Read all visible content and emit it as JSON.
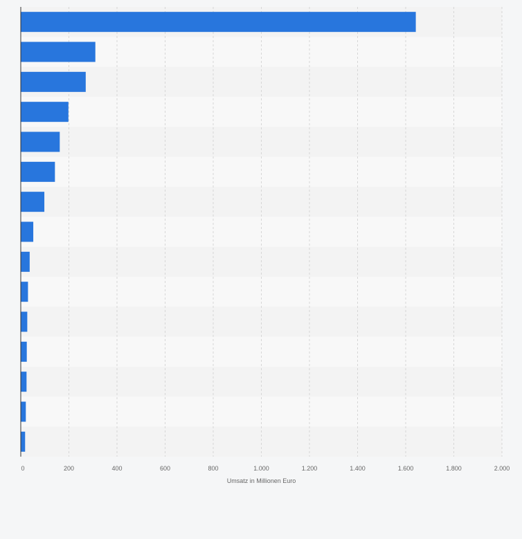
{
  "chart_data": {
    "type": "bar",
    "orientation": "horizontal",
    "categories": [
      "",
      "",
      "",
      "",
      "",
      "",
      "",
      "",
      "",
      "",
      "",
      "",
      "",
      "",
      ""
    ],
    "values": [
      1642,
      310,
      270,
      198,
      162,
      142,
      98,
      52,
      37,
      30,
      27,
      25,
      24,
      21,
      18
    ],
    "xlabel": "Umsatz in Millionen Euro",
    "ylabel": "",
    "xlim": [
      0,
      2000
    ],
    "xticks": [
      0,
      200,
      400,
      600,
      800,
      1000,
      1200,
      1400,
      1600,
      1800,
      2000
    ],
    "xtick_labels": [
      "0",
      "200",
      "400",
      "600",
      "800",
      "1.000",
      "1.200",
      "1.400",
      "1.600",
      "1.800",
      "2.000"
    ],
    "grid": true,
    "legend": "none",
    "colors": {
      "bar": "#2876dd",
      "band_dark": "#f3f3f3",
      "band_light": "#f8f8f8",
      "gridline": "#d6d6d6",
      "axis": "#333333",
      "text": "#666666"
    }
  }
}
